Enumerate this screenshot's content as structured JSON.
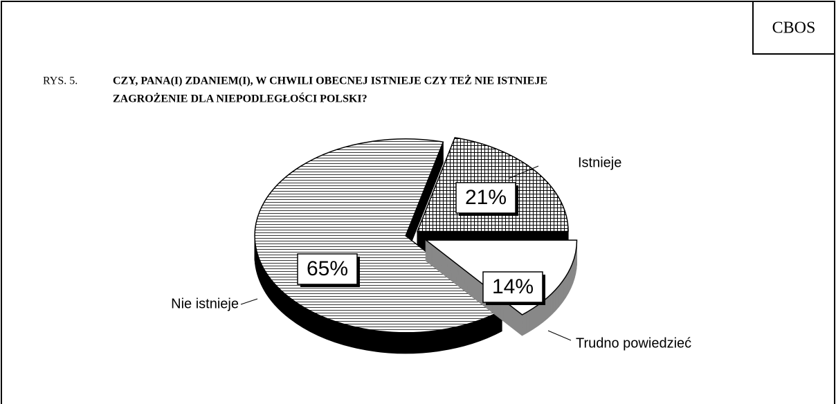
{
  "source": "CBOS",
  "chart_data": {
    "type": "pie",
    "figure_label": "RYS. 5.",
    "title_lines": [
      "CZY, PANA(I) ZDANIEM(I), W CHWILI OBECNEJ ISTNIEJE CZY TEŻ NIE ISTNIEJE",
      "ZAGROŻENIE DLA NIEPODLEGŁOŚCI POLSKI?"
    ],
    "categories": [
      "Istnieje",
      "Trudno powiedzieć",
      "Nie istnieje"
    ],
    "values": [
      21,
      14,
      65
    ],
    "value_labels": [
      "21%",
      "14%",
      "65%"
    ]
  }
}
